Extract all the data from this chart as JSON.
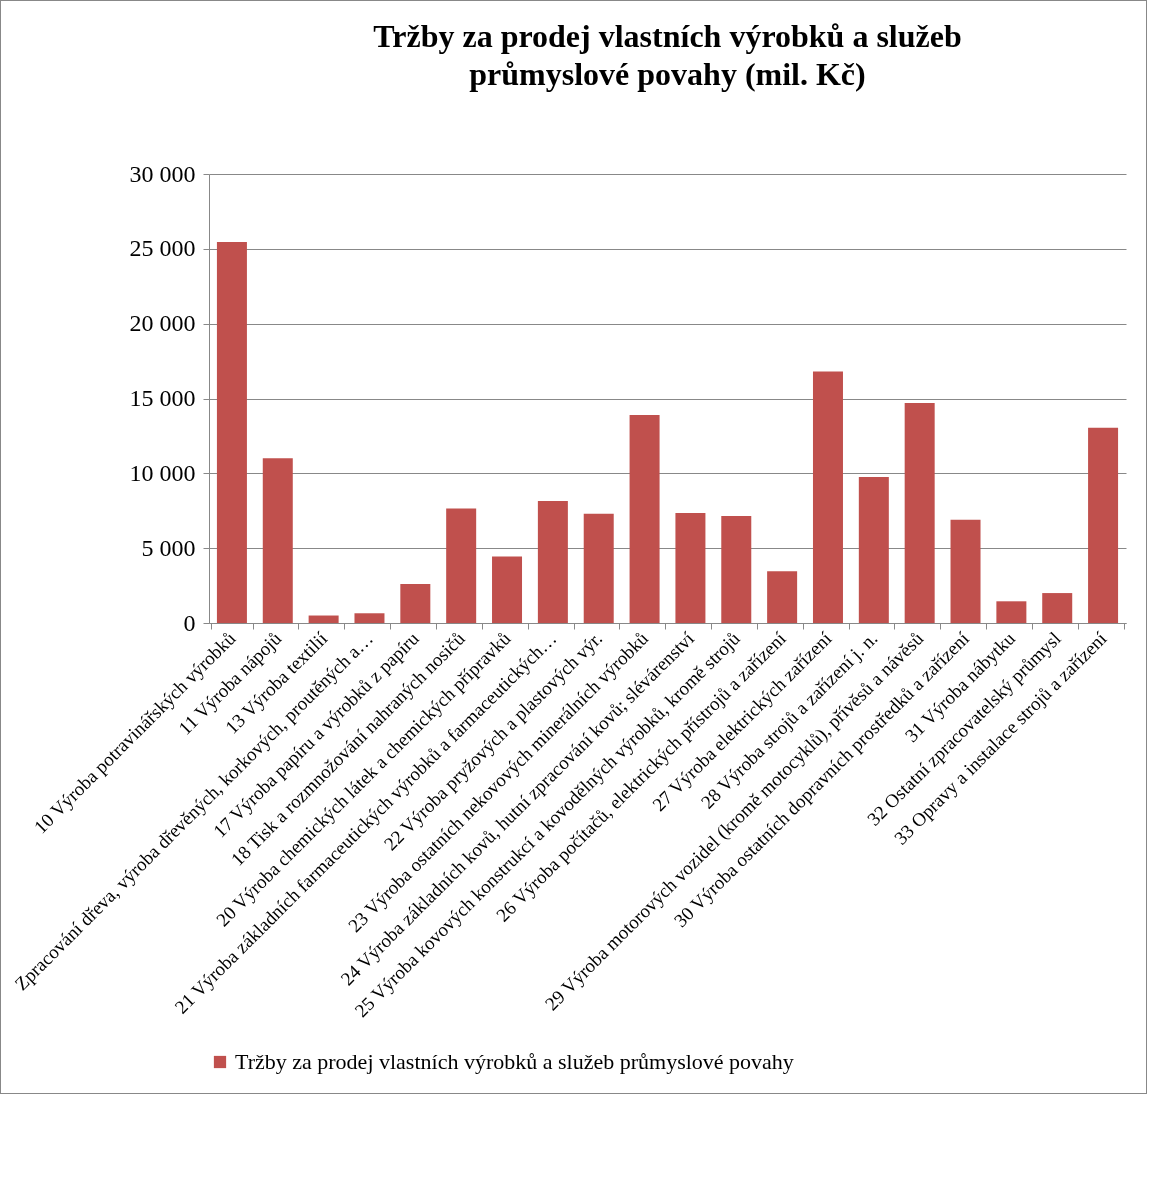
{
  "chart_data": {
    "type": "bar",
    "title": "Tržby za prodej vlastních výrobků a služeb průmyslové povahy (mil. Kč)",
    "categories": [
      "10 Výroba potravinářských výrobků",
      "11 Výroba nápojů",
      "13 Výroba textilií",
      "Zpracování dřeva, výroba dřevěných, korkových, proutěných a…",
      "17 Výroba papíru a výrobků z papíru",
      "18 Tisk a rozmnožování nahraných nosičů",
      "20 Výroba chemických látek a chemických přípravků",
      "21 Výroba základních farmaceutických výrobků a farmaceutických…",
      "22 Výroba pryžových a plastových výr.",
      "23 Výroba ostatních nekovových minerálních výrobků",
      "24 Výroba základních kovů, hutní zpracování kovů; slévárenství",
      "25 Výroba kovových konstrukcí a kovodělných výrobků, kromě strojů",
      "26 Výroba počítačů, elektrických přístrojů a zařízení",
      "27 Výroba elektrických zařízení",
      "28 Výroba strojů a zařízení j. n.",
      "29 Výroba motorových vozidel (kromě motocyklů), přívěsů a návěsů",
      "30 Výroba ostatních dopravních prostředků a zařízení",
      "31 Výroba nábytku",
      "32  Ostatní zpracovatelský průmysl",
      "33  Opravy a instalace  strojů  a zařízení"
    ],
    "series": [
      {
        "name": "Tržby za prodej vlastních výrobků a služeb průmyslové povahy",
        "color": "#c0504d",
        "values": [
          25450,
          11000,
          500,
          650,
          2600,
          7650,
          4450,
          8150,
          7300,
          13900,
          7350,
          7150,
          3450,
          16800,
          9750,
          14700,
          6900,
          1450,
          2000,
          13050
        ]
      }
    ],
    "ylim": [
      0,
      30000
    ],
    "yticks": [
      {
        "value": 0,
        "label": "0"
      },
      {
        "value": 5000,
        "label": "5 000"
      },
      {
        "value": 10000,
        "label": "10 000"
      },
      {
        "value": 15000,
        "label": "15 000"
      },
      {
        "value": 20000,
        "label": "20 000"
      },
      {
        "value": 25000,
        "label": "25 000"
      },
      {
        "value": 30000,
        "label": "30 000"
      }
    ],
    "grid": "y",
    "legend": "bottom"
  }
}
